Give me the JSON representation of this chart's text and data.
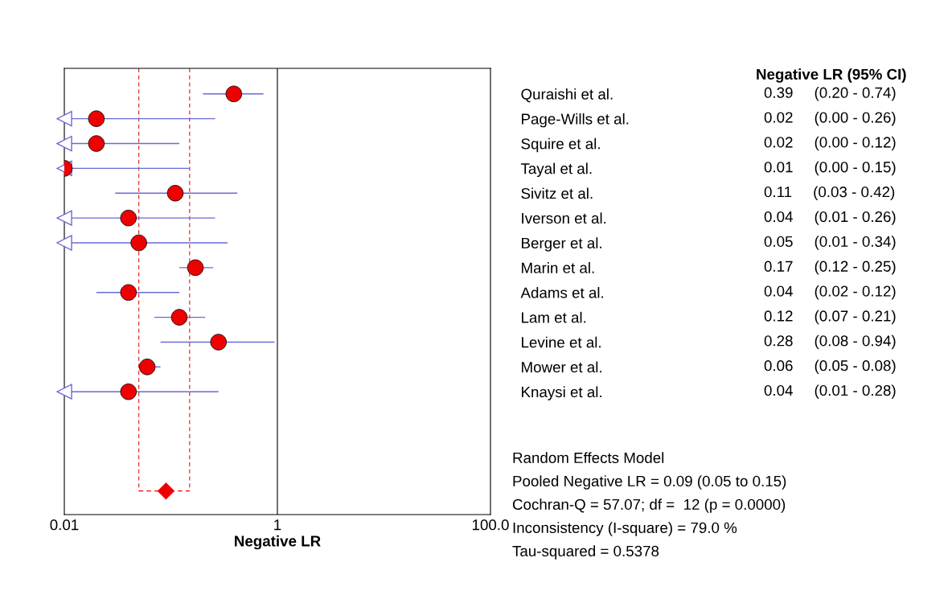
{
  "chart_data": {
    "type": "scatter",
    "orientation": "horizontal",
    "xlabel": "Negative LR",
    "log": "x",
    "xlim": [
      0.01,
      100
    ],
    "xticks": [
      {
        "value": 0.01,
        "label": "0.01"
      },
      {
        "value": 1,
        "label": "1"
      },
      {
        "value": 100,
        "label": "100.0"
      }
    ],
    "grid": false,
    "legend": false,
    "categories": [
      "Quraishi et al.",
      "Page-Wills et al.",
      "Squire et al.",
      "Tayal et al.",
      "Sivitz et al.",
      "Iverson et al.",
      "Berger et al.",
      "Marin et al.",
      "Adams et al.",
      "Lam et al.",
      "Levine et al.",
      "Mower et al.",
      "Knaysi et al.",
      null,
      null,
      null,
      null
    ],
    "series": [
      {
        "color": "#ee0000",
        "marker": "circle",
        "values": [
          0.39,
          0.02,
          0.02,
          0.01,
          0.11,
          0.04,
          0.05,
          0.17,
          0.04,
          0.12,
          0.28,
          0.06,
          0.04,
          null,
          null,
          null,
          null
        ],
        "errors": [
          [
            0.2,
            0.74
          ],
          [
            0.01,
            0.26
          ],
          [
            0.01,
            0.12
          ],
          [
            0.01,
            0.15
          ],
          [
            0.03,
            0.42
          ],
          [
            0.01,
            0.26
          ],
          [
            0.01,
            0.34
          ],
          [
            0.12,
            0.25
          ],
          [
            0.02,
            0.12
          ],
          [
            0.07,
            0.21
          ],
          [
            0.08,
            0.94
          ],
          [
            0.05,
            0.08
          ],
          [
            0.01,
            0.28
          ],
          null,
          null,
          null,
          null
        ],
        "value_labels": [
          "0.39     (0.20 - 0.74)",
          "0.02     (0.00 - 0.26)",
          "0.02     (0.00 - 0.12)",
          "0.01     (0.00 - 0.15)",
          "0.11     (0.03 - 0.42)",
          "0.04     (0.01 - 0.26)",
          "0.05     (0.01 - 0.34)",
          "0.17     (0.12 - 0.25)",
          "0.04     (0.02 - 0.12)",
          "0.12     (0.07 - 0.21)",
          "0.28     (0.08 - 0.94)",
          "0.06     (0.05 - 0.08)",
          "0.04     (0.01 - 0.28)",
          null,
          null,
          null,
          null
        ]
      },
      {
        "color": "#ee0000",
        "marker": "diamond",
        "values": [
          null,
          null,
          null,
          null,
          null,
          null,
          null,
          null,
          null,
          null,
          null,
          null,
          null,
          null,
          null,
          null,
          0.09
        ],
        "errors": [
          null,
          null,
          null,
          null,
          null,
          null,
          null,
          null,
          null,
          null,
          null,
          null,
          null,
          null,
          null,
          null,
          [
            0.05,
            0.15
          ]
        ]
      }
    ],
    "ref_lines": [
      {
        "axis": "x",
        "value": 1,
        "color": "#000000",
        "line_style": "solid"
      },
      {
        "axis": "x",
        "value": 0.05,
        "color": "#e03030",
        "line_style": "dashed"
      },
      {
        "axis": "x",
        "value": 0.15,
        "color": "#e03030",
        "line_style": "dashed"
      }
    ],
    "annotations": [
      "Negative LR (95% CI)",
      "Random Effects Model",
      "Pooled Negative LR = 0.09 (0.05 to 0.15)",
      "Cochran-Q = 57.07; df =  12 (p = 0.0000)",
      "Inconsistency (I-square) = 79.0 %",
      "Tau-squared = 0.5378"
    ]
  }
}
